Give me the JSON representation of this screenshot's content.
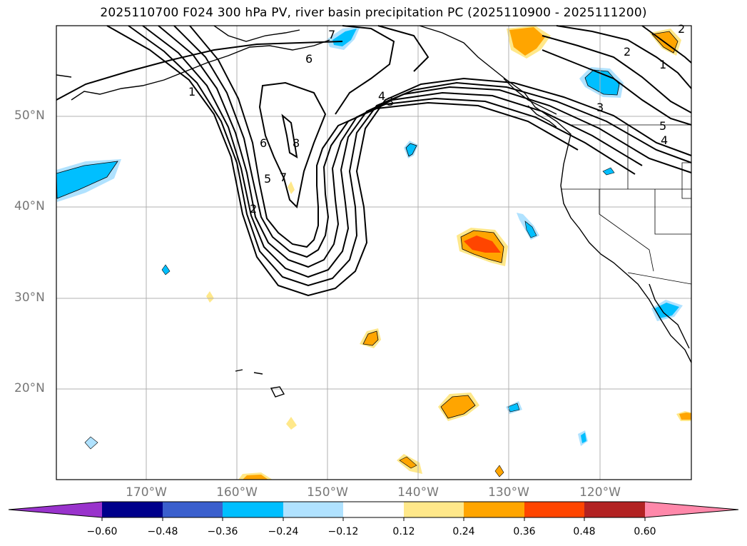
{
  "title": "2025110700 F024 300 hPa PV, river basin precipitation PC (2025110900 - 2025111200)",
  "lat_labels": [
    "50°N",
    "40°N",
    "30°N",
    "20°N"
  ],
  "lon_labels": [
    "170°W",
    "160°W",
    "150°W",
    "140°W",
    "130°W",
    "120°W"
  ],
  "colorbar": {
    "ticks": [
      "−0.60",
      "−0.48",
      "−0.36",
      "−0.24",
      "−0.12",
      "0.12",
      "0.24",
      "0.36",
      "0.48",
      "0.60"
    ],
    "colors": [
      "#9933cc",
      "#00008b",
      "#3a5fcd",
      "#00bfff",
      "#b0e2ff",
      "#ffffff",
      "#ffe88a",
      "#ffa500",
      "#ff4500",
      "#b22222",
      "#ff88aa"
    ]
  },
  "contour_labels": [
    "1",
    "2",
    "3",
    "4",
    "5",
    "6",
    "7",
    "8",
    "6",
    "5",
    "7",
    "2",
    "4",
    "3",
    "2",
    "1",
    "3",
    "5",
    "4"
  ],
  "fill_colors": {
    "neg_light": "#b0e2ff",
    "neg": "#00bfff",
    "pos_light": "#ffe88a",
    "pos": "#ffa500",
    "pos_strong": "#ff4500"
  }
}
